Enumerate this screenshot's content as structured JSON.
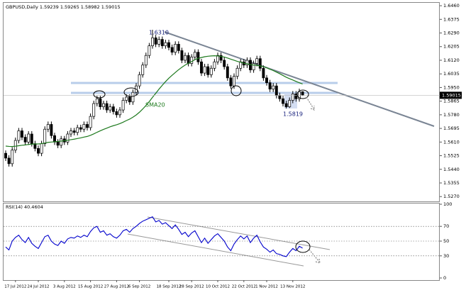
{
  "chart_data": [
    {
      "type": "candlestick",
      "title": "GBPUSD,Daily  1.59239 1.59265 1.58982 1.59015",
      "categories": [
        null,
        null,
        null,
        "17 Jul 2012",
        null,
        null,
        null,
        null,
        null,
        null,
        "24 Jul 2012",
        null,
        null,
        null,
        null,
        null,
        null,
        null,
        "3 Aug 2012",
        null,
        null,
        null,
        null,
        null,
        null,
        null,
        "15 Aug 2012",
        null,
        null,
        null,
        null,
        null,
        null,
        null,
        "27 Aug 2012",
        null,
        null,
        null,
        null,
        null,
        null,
        "6 Sep 2012",
        null,
        null,
        null,
        null,
        null,
        null,
        null,
        null,
        "18 Sep 2012",
        null,
        null,
        null,
        null,
        null,
        null,
        "28 Sep 2012",
        null,
        null,
        null,
        null,
        null,
        null,
        null,
        "10 Oct 2012",
        null,
        null,
        null,
        null,
        null,
        null,
        null,
        "22 Oct 2012",
        null,
        null,
        null,
        null,
        null,
        null,
        "1 Nov 2012",
        null,
        null,
        null,
        null,
        null,
        null,
        null,
        "13 Nov 2012",
        null,
        null,
        null
      ],
      "open": [
        1.554,
        1.551,
        1.5475,
        1.556,
        1.562,
        1.568,
        1.564,
        1.561,
        1.566,
        1.56,
        1.557,
        1.554,
        1.56,
        1.569,
        1.572,
        1.565,
        1.561,
        1.559,
        1.563,
        1.561,
        1.566,
        1.568,
        1.567,
        1.57,
        1.569,
        1.572,
        1.57,
        1.577,
        1.585,
        1.588,
        1.583,
        1.585,
        1.581,
        1.583,
        1.58,
        1.578,
        1.581,
        1.587,
        1.589,
        1.586,
        1.592,
        1.596,
        1.603,
        1.609,
        1.615,
        1.621,
        1.626,
        1.622,
        1.625,
        1.621,
        1.623,
        1.62,
        1.617,
        1.622,
        1.618,
        1.612,
        1.615,
        1.61,
        1.614,
        1.617,
        1.611,
        1.604,
        1.608,
        1.603,
        1.607,
        1.611,
        1.615,
        1.612,
        1.608,
        1.601,
        1.596,
        1.602,
        1.607,
        1.611,
        1.609,
        1.612,
        1.606,
        1.61,
        1.613,
        1.607,
        1.601,
        1.598,
        1.594,
        1.596,
        1.59,
        1.588,
        1.585,
        1.583,
        1.587,
        1.591,
        1.588,
        1.59239
      ],
      "high": [
        1.5558,
        1.5528,
        1.5578,
        1.5638,
        1.5698,
        1.5698,
        1.5658,
        1.5678,
        1.5678,
        1.5618,
        1.5588,
        1.5618,
        1.5708,
        1.5738,
        1.5738,
        1.5668,
        1.5628,
        1.5648,
        1.5648,
        1.5678,
        1.5698,
        1.5698,
        1.5718,
        1.5718,
        1.5738,
        1.5738,
        1.5788,
        1.5868,
        1.5898,
        1.5898,
        1.5868,
        1.5868,
        1.5848,
        1.5848,
        1.5818,
        1.5828,
        1.5888,
        1.5908,
        1.5908,
        1.5938,
        1.5978,
        1.6048,
        1.6108,
        1.6168,
        1.6228,
        1.631,
        1.6278,
        1.6268,
        1.6268,
        1.6248,
        1.6248,
        1.6218,
        1.6238,
        1.6238,
        1.6198,
        1.6168,
        1.6168,
        1.6158,
        1.6188,
        1.6188,
        1.6128,
        1.6098,
        1.6098,
        1.6088,
        1.6128,
        1.6168,
        1.6168,
        1.6138,
        1.6098,
        1.6028,
        1.6038,
        1.6088,
        1.6128,
        1.6128,
        1.6138,
        1.6138,
        1.6118,
        1.6148,
        1.6148,
        1.6088,
        1.6028,
        1.5998,
        1.5978,
        1.5978,
        1.5918,
        1.5898,
        1.5868,
        1.5888,
        1.5928,
        1.5928,
        1.5943,
        1.59265
      ],
      "low": [
        1.5492,
        1.5457,
        1.5457,
        1.5542,
        1.5602,
        1.5622,
        1.5592,
        1.5592,
        1.5582,
        1.5552,
        1.5522,
        1.5522,
        1.5582,
        1.5672,
        1.5632,
        1.5592,
        1.5572,
        1.5572,
        1.5592,
        1.5592,
        1.5642,
        1.5652,
        1.5652,
        1.5672,
        1.5672,
        1.5682,
        1.5682,
        1.5752,
        1.5832,
        1.5812,
        1.5812,
        1.5792,
        1.5792,
        1.5782,
        1.5762,
        1.5762,
        1.5792,
        1.5852,
        1.5842,
        1.5842,
        1.5902,
        1.5942,
        1.6012,
        1.6072,
        1.6132,
        1.6192,
        1.6202,
        1.6202,
        1.6192,
        1.6192,
        1.6182,
        1.6152,
        1.6152,
        1.6162,
        1.6102,
        1.6102,
        1.6082,
        1.6082,
        1.6122,
        1.6092,
        1.6022,
        1.6022,
        1.6012,
        1.6012,
        1.6052,
        1.6092,
        1.6102,
        1.6062,
        1.5992,
        1.5942,
        1.5942,
        1.6002,
        1.6052,
        1.6072,
        1.6072,
        1.6042,
        1.6042,
        1.6082,
        1.6052,
        1.5992,
        1.5962,
        1.5922,
        1.5922,
        1.5882,
        1.5862,
        1.5832,
        1.5819,
        1.5822,
        1.5852,
        1.5862,
        1.5862,
        1.58982
      ],
      "close": [
        1.551,
        1.5475,
        1.556,
        1.562,
        1.568,
        1.564,
        1.561,
        1.566,
        1.56,
        1.557,
        1.554,
        1.56,
        1.569,
        1.572,
        1.565,
        1.561,
        1.559,
        1.563,
        1.561,
        1.566,
        1.568,
        1.567,
        1.57,
        1.569,
        1.572,
        1.57,
        1.577,
        1.585,
        1.588,
        1.583,
        1.585,
        1.581,
        1.583,
        1.58,
        1.578,
        1.581,
        1.587,
        1.589,
        1.586,
        1.592,
        1.596,
        1.603,
        1.609,
        1.615,
        1.621,
        1.626,
        1.622,
        1.625,
        1.621,
        1.623,
        1.62,
        1.617,
        1.622,
        1.618,
        1.612,
        1.615,
        1.61,
        1.614,
        1.617,
        1.611,
        1.604,
        1.608,
        1.603,
        1.607,
        1.611,
        1.615,
        1.612,
        1.608,
        1.601,
        1.596,
        1.602,
        1.607,
        1.611,
        1.609,
        1.612,
        1.606,
        1.61,
        1.613,
        1.607,
        1.601,
        1.598,
        1.594,
        1.596,
        1.59,
        1.588,
        1.585,
        1.583,
        1.587,
        1.591,
        1.588,
        1.59239,
        1.59015
      ],
      "sma": {
        "name": "SMA20",
        "color": "#1e7a1e",
        "values": [
          1.5585,
          1.5583,
          1.5582,
          1.5584,
          1.5587,
          1.559,
          1.5592,
          1.5595,
          1.5597,
          1.5598,
          1.5598,
          1.56,
          1.5604,
          1.5608,
          1.561,
          1.5612,
          1.5614,
          1.5616,
          1.5618,
          1.5621,
          1.5625,
          1.5628,
          1.5632,
          1.5636,
          1.5641,
          1.5645,
          1.5652,
          1.5661,
          1.5671,
          1.568,
          1.5689,
          1.5697,
          1.5705,
          1.5712,
          1.5718,
          1.5725,
          1.5734,
          1.5744,
          1.5753,
          1.5765,
          1.5779,
          1.5796,
          1.5816,
          1.5838,
          1.5862,
          1.5889,
          1.5914,
          1.594,
          1.5964,
          1.5987,
          1.6008,
          1.6026,
          1.6044,
          1.6061,
          1.6076,
          1.609,
          1.6101,
          1.6112,
          1.6124,
          1.6132,
          1.6137,
          1.6142,
          1.6145,
          1.6147,
          1.6148,
          1.6147,
          1.6144,
          1.614,
          1.6134,
          1.6127,
          1.612,
          1.6113,
          1.6108,
          1.6102,
          1.6098,
          1.6093,
          1.609,
          1.6088,
          1.6085,
          1.608,
          1.6073,
          1.6064,
          1.6056,
          1.6046,
          1.6036,
          1.6025,
          1.6014,
          1.6005,
          1.5997,
          1.5988,
          1.598,
          1.5972
        ]
      },
      "annotations": [
        "1.6310",
        "1.5819"
      ],
      "ylim": [
        1.524,
        1.6478
      ],
      "yticks": [
        {
          "value": 1.646,
          "label": "1.6460"
        },
        {
          "value": 1.6375,
          "label": "1.6375"
        },
        {
          "value": 1.629,
          "label": "1.6290"
        },
        {
          "value": 1.6205,
          "label": "1.6205"
        },
        {
          "value": 1.612,
          "label": "1.6120"
        },
        {
          "value": 1.6035,
          "label": "1.6035"
        },
        {
          "value": 1.595,
          "label": "1.5950"
        },
        {
          "value": 1.5865,
          "label": "1.5865"
        },
        {
          "value": 1.578,
          "label": "1.5780"
        },
        {
          "value": 1.5695,
          "label": "1.5695"
        },
        {
          "value": 1.561,
          "label": "1.5610"
        },
        {
          "value": 1.5525,
          "label": "1.5525"
        },
        {
          "value": 1.544,
          "label": "1.5440"
        },
        {
          "value": 1.5355,
          "label": "1.5355"
        },
        {
          "value": 1.527,
          "label": "1.5270"
        }
      ]
    },
    {
      "type": "line",
      "title": "RSI(14) 40.4604",
      "color": "#0000cc",
      "values": [
        42,
        38,
        50,
        55,
        58,
        52,
        48,
        55,
        47,
        43,
        40,
        48,
        56,
        58,
        50,
        46,
        44,
        50,
        47,
        53,
        55,
        54,
        57,
        55,
        58,
        56,
        63,
        68,
        70,
        62,
        64,
        58,
        60,
        56,
        54,
        58,
        64,
        66,
        62,
        67,
        70,
        74,
        77,
        79,
        81,
        83,
        76,
        78,
        73,
        75,
        71,
        67,
        72,
        66,
        59,
        62,
        56,
        61,
        64,
        56,
        48,
        54,
        47,
        52,
        57,
        60,
        55,
        50,
        42,
        37,
        46,
        52,
        57,
        53,
        57,
        48,
        54,
        58,
        49,
        42,
        39,
        35,
        38,
        33,
        32,
        30,
        29,
        35,
        40,
        37,
        43,
        40.4604
      ],
      "ylim": [
        0,
        100
      ],
      "yticks": [
        0,
        30,
        50,
        70,
        100
      ]
    }
  ]
}
